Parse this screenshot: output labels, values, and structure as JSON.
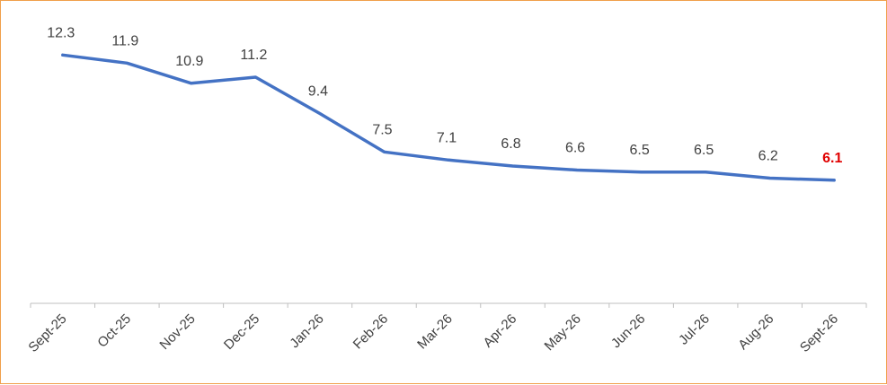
{
  "chart_data": {
    "type": "line",
    "categories": [
      "Sept-25",
      "Oct-25",
      "Nov-25",
      "Dec-25",
      "Jan-26",
      "Feb-26",
      "Mar-26",
      "Apr-26",
      "May-26",
      "Jun-26",
      "Jul-26",
      "Aug-26",
      "Sept-26"
    ],
    "series": [
      {
        "values": [
          12.3,
          11.9,
          10.9,
          11.2,
          9.4,
          7.5,
          7.1,
          6.8,
          6.6,
          6.5,
          6.5,
          6.2,
          6.1
        ]
      }
    ],
    "data_labels": [
      "12.3",
      "11.9",
      "10.9",
      "11.2",
      "9.4",
      "7.5",
      "7.1",
      "6.8",
      "6.6",
      "6.5",
      "6.5",
      "6.2",
      "6.1"
    ],
    "highlight_last_label": true,
    "ylim": [
      0,
      13.5
    ],
    "grid": false,
    "legend": "none",
    "title": "",
    "xlabel": "",
    "ylabel": "",
    "colors": {
      "line": "#4472c4",
      "label": "#404040",
      "highlight": "#e00000",
      "axis": "#bfbfbf",
      "border": "#f0a04b"
    }
  }
}
